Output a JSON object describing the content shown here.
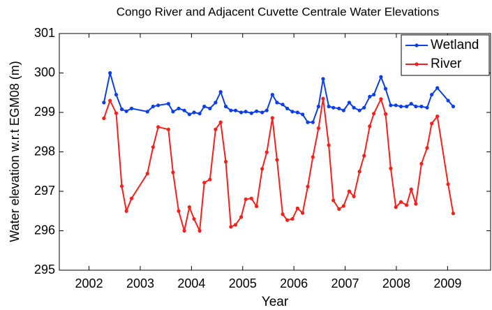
{
  "chart_data": {
    "type": "line",
    "title": "Congo River and Adjacent Cuvette Centrale Water Elevations",
    "x_label": "Year",
    "y_label": "Water elevation w.r.t EGM08 (m)",
    "x": [
      2002.29,
      2002.41,
      2002.53,
      2002.64,
      2002.73,
      2002.83,
      2003.14,
      2003.25,
      2003.35,
      2003.55,
      2003.64,
      2003.75,
      2003.86,
      2003.96,
      2004.05,
      2004.16,
      2004.25,
      2004.36,
      2004.47,
      2004.57,
      2004.67,
      2004.77,
      2004.86,
      2004.97,
      2005.06,
      2005.17,
      2005.27,
      2005.38,
      2005.47,
      2005.58,
      2005.67,
      2005.78,
      2005.87,
      2005.97,
      2006.07,
      2006.17,
      2006.27,
      2006.37,
      2006.48,
      2006.57,
      2006.68,
      2006.77,
      2006.88,
      2006.97,
      2007.08,
      2007.17,
      2007.28,
      2007.37,
      2007.48,
      2007.56,
      2007.7,
      2007.79,
      2007.89,
      2007.99,
      2008.09,
      2008.2,
      2008.29,
      2008.38,
      2008.49,
      2008.6,
      2008.69,
      2008.8,
      2009.01,
      2009.11
    ],
    "series": [
      {
        "name": "Wetland",
        "color": "#0b3ee6",
        "values": [
          299.25,
          300.0,
          299.45,
          299.08,
          299.03,
          299.1,
          299.02,
          299.15,
          299.18,
          299.22,
          299.02,
          299.1,
          299.05,
          298.95,
          299.0,
          298.97,
          299.15,
          299.1,
          299.25,
          299.52,
          299.15,
          299.05,
          299.05,
          299.0,
          299.02,
          298.98,
          299.03,
          299.0,
          299.05,
          299.45,
          299.25,
          299.2,
          299.1,
          299.02,
          299.0,
          298.95,
          298.75,
          298.75,
          299.15,
          299.85,
          299.15,
          299.12,
          299.1,
          299.05,
          299.25,
          299.12,
          299.05,
          299.12,
          299.4,
          299.45,
          299.9,
          299.6,
          299.18,
          299.18,
          299.15,
          299.15,
          299.22,
          299.15,
          299.15,
          299.12,
          299.45,
          299.62,
          299.3,
          299.15
        ]
      },
      {
        "name": "River",
        "color": "#f5201c",
        "values": [
          298.85,
          299.3,
          298.98,
          297.13,
          296.5,
          296.82,
          297.45,
          298.12,
          298.63,
          298.57,
          297.48,
          296.5,
          296.0,
          296.6,
          296.3,
          296.0,
          297.22,
          297.3,
          298.57,
          298.75,
          297.75,
          296.1,
          296.15,
          296.35,
          296.8,
          296.82,
          296.62,
          297.57,
          297.99,
          298.86,
          297.8,
          296.42,
          296.27,
          296.3,
          296.57,
          296.45,
          297.12,
          297.87,
          298.6,
          299.35,
          298.17,
          296.77,
          296.55,
          296.63,
          297.0,
          296.87,
          297.5,
          297.9,
          298.65,
          298.97,
          299.34,
          298.96,
          297.58,
          296.6,
          296.73,
          296.65,
          297.05,
          296.68,
          297.7,
          298.1,
          298.72,
          298.9,
          297.18,
          296.44
        ]
      }
    ],
    "xlim": [
      2001.42,
      2009.84
    ],
    "xticks": [
      2002,
      2003,
      2004,
      2005,
      2006,
      2007,
      2008,
      2009
    ],
    "ylim": [
      295,
      301
    ],
    "yticks": [
      295,
      296,
      297,
      298,
      299,
      300,
      301
    ],
    "legend": "upper right",
    "grid": false
  }
}
